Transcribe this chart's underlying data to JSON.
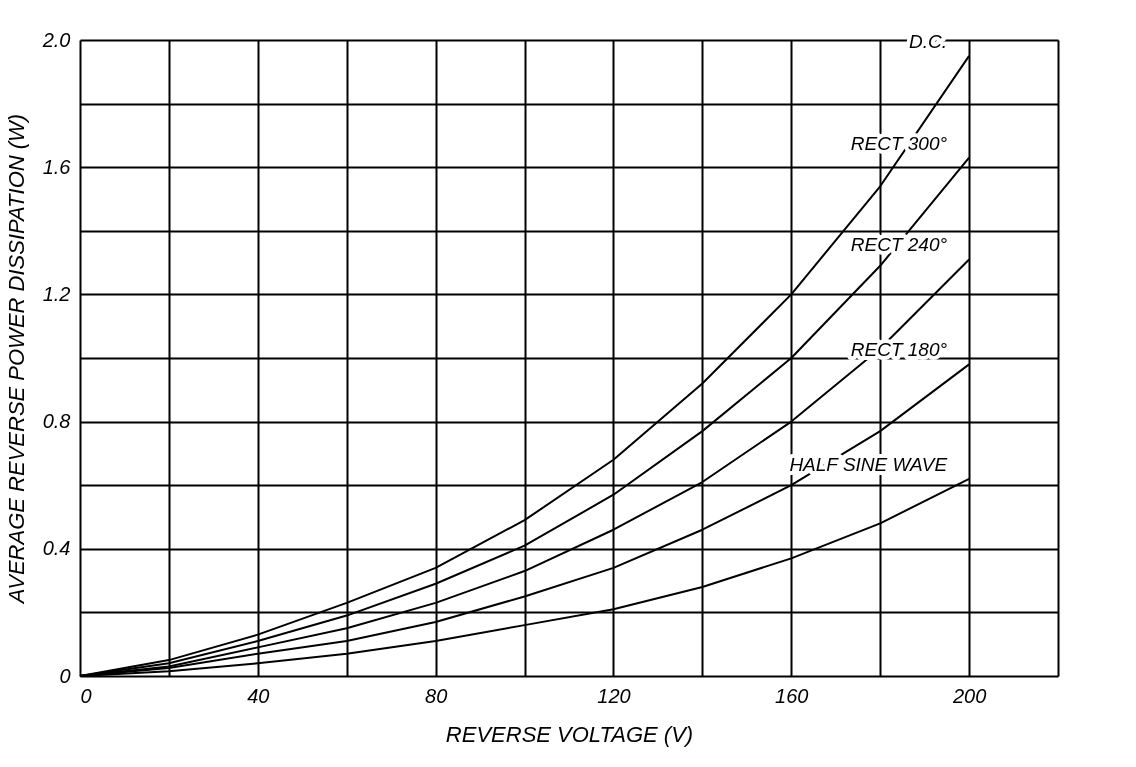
{
  "chart_data": {
    "type": "line",
    "xlabel": "REVERSE VOLTAGE (V)",
    "ylabel": "AVERAGE REVERSE POWER DISSIPATION (W)",
    "x": [
      0,
      20,
      40,
      60,
      80,
      100,
      120,
      140,
      160,
      180,
      200
    ],
    "xlim": [
      0,
      220
    ],
    "xticks": [
      0,
      {
        "value": 20,
        "label": null
      },
      40,
      {
        "value": 60,
        "label": null
      },
      80,
      {
        "value": 100,
        "label": null
      },
      120,
      {
        "value": 140,
        "label": null
      },
      160,
      {
        "value": 180,
        "label": null
      },
      200,
      {
        "value": 220,
        "label": null
      }
    ],
    "ylim": [
      0,
      2.0
    ],
    "yticks": [
      0,
      {
        "value": 0.2,
        "label": null
      },
      0.4,
      {
        "value": 0.6,
        "label": null
      },
      0.8,
      {
        "value": 1.0,
        "label": null
      },
      1.2,
      {
        "value": 1.4,
        "label": null
      },
      1.6,
      {
        "value": 1.8,
        "label": null
      },
      {
        "value": 2.0,
        "label": "2.0"
      }
    ],
    "grid": true,
    "legend": false,
    "marker": "none",
    "line_style": "solid",
    "series": [
      {
        "name": "D.C.",
        "color": "#000000",
        "values": [
          0,
          0.05,
          0.13,
          0.23,
          0.34,
          0.49,
          0.68,
          0.92,
          1.2,
          1.54,
          1.95
        ]
      },
      {
        "name": "RECT 300°",
        "color": "#000000",
        "values": [
          0,
          0.04,
          0.11,
          0.19,
          0.29,
          0.41,
          0.57,
          0.77,
          1.0,
          1.29,
          1.63
        ]
      },
      {
        "name": "RECT 240°",
        "color": "#000000",
        "values": [
          0,
          0.03,
          0.09,
          0.15,
          0.23,
          0.33,
          0.46,
          0.61,
          0.8,
          1.03,
          1.31
        ]
      },
      {
        "name": "RECT 180°",
        "color": "#000000",
        "values": [
          0,
          0.025,
          0.07,
          0.11,
          0.17,
          0.25,
          0.34,
          0.46,
          0.6,
          0.77,
          0.98
        ]
      },
      {
        "name": "HALF SINE WAVE",
        "color": "#000000",
        "values": [
          0,
          0.015,
          0.04,
          0.07,
          0.11,
          0.16,
          0.21,
          0.28,
          0.37,
          0.48,
          0.62
        ]
      }
    ]
  }
}
